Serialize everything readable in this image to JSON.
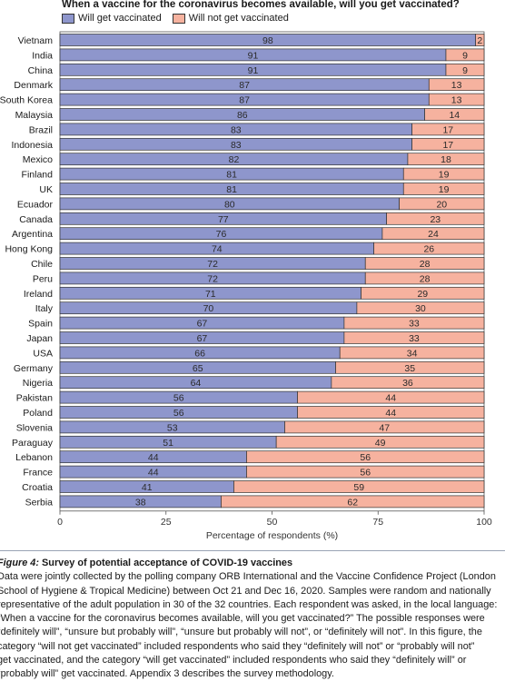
{
  "colors": {
    "vaccinated": "#8e96cc",
    "not_vaccinated": "#f6b29f",
    "outline": "#333333"
  },
  "chart_data": {
    "type": "bar",
    "orientation": "horizontal",
    "stacked": true,
    "title": "When a vaccine for the coronavirus becomes available, will you get vaccinated?",
    "xlabel": "Percentage of respondents (%)",
    "ylabel": "",
    "xlim": [
      0,
      100
    ],
    "xticks": [
      0,
      25,
      50,
      75,
      100
    ],
    "legend_position": "top-left",
    "categories": [
      "Vietnam",
      "India",
      "China",
      "Denmark",
      "South Korea",
      "Malaysia",
      "Brazil",
      "Indonesia",
      "Mexico",
      "Finland",
      "UK",
      "Ecuador",
      "Canada",
      "Argentina",
      "Hong Kong",
      "Chile",
      "Peru",
      "Ireland",
      "Italy",
      "Spain",
      "Japan",
      "USA",
      "Germany",
      "Nigeria",
      "Pakistan",
      "Poland",
      "Slovenia",
      "Paraguay",
      "Lebanon",
      "France",
      "Croatia",
      "Serbia"
    ],
    "series": [
      {
        "name": "Will get vaccinated",
        "values": [
          98,
          91,
          91,
          87,
          87,
          86,
          83,
          83,
          82,
          81,
          81,
          80,
          77,
          76,
          74,
          72,
          72,
          71,
          70,
          67,
          67,
          66,
          65,
          64,
          56,
          56,
          53,
          51,
          44,
          44,
          41,
          38
        ]
      },
      {
        "name": "Will not get vaccinated",
        "values": [
          2,
          9,
          9,
          13,
          13,
          14,
          17,
          17,
          18,
          19,
          19,
          20,
          23,
          24,
          26,
          28,
          28,
          29,
          30,
          33,
          33,
          34,
          35,
          36,
          44,
          44,
          47,
          49,
          56,
          56,
          59,
          62
        ]
      }
    ]
  },
  "caption": {
    "label": "Figure 4:",
    "title": " Survey of potential acceptance of COVID-19 vaccines",
    "lines": [
      "Data were jointly collected by the polling company ORB International and the Vaccine Confidence Project (London",
      "School of Hygiene & Tropical Medicine) between Oct 21 and Dec 16, 2020. Samples were random and nationally",
      "representative of the adult population in 30 of the 32 countries. Each respondent was asked, in the local language:",
      "“When a vaccine for the coronavirus becomes available, will you get vaccinated?” The possible responses were",
      "“definitely will”, “unsure but probably will”, “unsure but probably will not”, or “definitely will not”. In this figure, the",
      "category “will not get vaccinated” included respondents who said they “definitely will not” or “probably will not”",
      "get vaccinated, and the category “will get vaccinated” included respondents who said they “definitely will” or",
      "“probably will” get vaccinated. Appendix 3 describes the survey methodology."
    ]
  }
}
